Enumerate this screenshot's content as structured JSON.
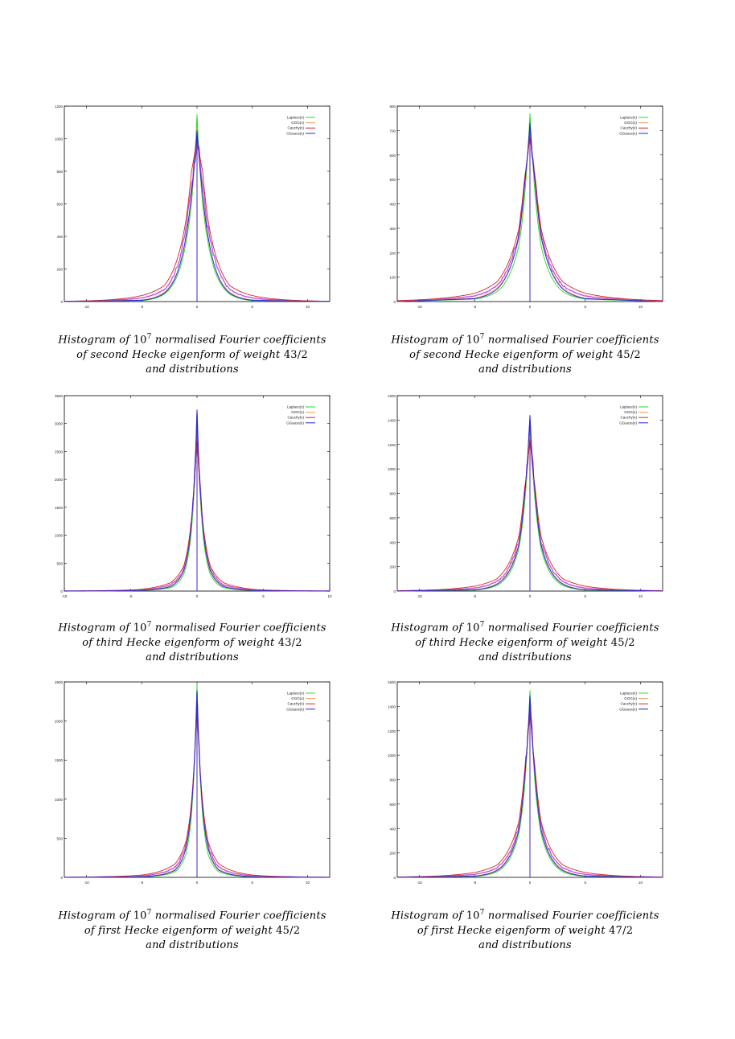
{
  "legend_labels": [
    "Laplace(x)",
    "GGG(x)",
    "Cauchy(x)",
    "GGauss(x)"
  ],
  "series_colors": {
    "Laplace(x)": "#22dd22",
    "GGG(x)": "#ff9a66",
    "Cauchy(x)": "#dd2222",
    "GGauss(x)": "#2222dd",
    "histogram": "#aa33dd"
  },
  "captions": [
    {
      "prefix": "Histogram of ",
      "base": "10",
      "exp": "7",
      "rest": " normalised Fourier coefficients",
      "line2": "of second Hecke eigenform of weight ",
      "weight": "43/2",
      "line3": "and distributions"
    },
    {
      "prefix": "Histogram of ",
      "base": "10",
      "exp": "7",
      "rest": " normalised Fourier coefficients",
      "line2": "of second Hecke eigenform of weight ",
      "weight": "45/2",
      "line3": "and distributions"
    },
    {
      "prefix": "Histogram of ",
      "base": "10",
      "exp": "7",
      "rest": " normalised Fourier coefficients",
      "line2": "of third Hecke eigenform of weight ",
      "weight": "43/2",
      "line3": "and distributions"
    },
    {
      "prefix": "Histogram of ",
      "base": "10",
      "exp": "7",
      "rest": " normalised Fourier coefficients",
      "line2": "of third Hecke eigenform of weight ",
      "weight": "45/2",
      "line3": "and distributions"
    },
    {
      "prefix": "Histogram of ",
      "base": "10",
      "exp": "7",
      "rest": " normalised Fourier coefficients",
      "line2": "of first Hecke eigenform of weight ",
      "weight": "45/2",
      "line3": "and distributions"
    },
    {
      "prefix": "Histogram of ",
      "base": "10",
      "exp": "7",
      "rest": " normalised Fourier coefficients",
      "line2": "of first Hecke eigenform of weight ",
      "weight": "47/2",
      "line3": "and distributions"
    }
  ],
  "chart_data": [
    {
      "type": "line",
      "xlim": [
        -12,
        12
      ],
      "ylim": [
        0,
        1200
      ],
      "xticks": [
        -10,
        -5,
        0,
        5,
        10
      ],
      "xtick_labels": [
        "-10",
        "-5",
        "0",
        "5",
        "10"
      ],
      "yticks": [
        0,
        200,
        400,
        600,
        800,
        1000,
        1200
      ],
      "ytick_labels": [
        "0",
        "200",
        "400",
        "600",
        "800",
        "1000",
        "1200"
      ],
      "legend": "top-right",
      "grid": false,
      "series": [
        {
          "name": "Laplace(x)",
          "color": "#22dd22",
          "x": [
            -12,
            -5,
            -3,
            -1,
            -0.5,
            0,
            0.5,
            1,
            3,
            5,
            12
          ],
          "y": [
            0,
            6,
            44,
            360,
            600,
            1150,
            600,
            360,
            44,
            6,
            0
          ]
        },
        {
          "name": "GGG(x)",
          "color": "#ff9a66",
          "x": [
            -12,
            -5,
            -3,
            -1,
            -0.5,
            0,
            0.5,
            1,
            3,
            5,
            12
          ],
          "y": [
            0,
            10,
            55,
            390,
            640,
            1070,
            640,
            390,
            55,
            10,
            0
          ]
        },
        {
          "name": "Cauchy(x)",
          "color": "#dd2222",
          "x": [
            -12,
            -5,
            -3,
            -1,
            -0.5,
            0,
            0.5,
            1,
            3,
            5,
            12
          ],
          "y": [
            2,
            37,
            96,
            500,
            800,
            1000,
            800,
            500,
            96,
            37,
            2
          ]
        },
        {
          "name": "GGauss(x)",
          "color": "#2222dd",
          "x": [
            -12,
            -5,
            -3,
            -1,
            -0.5,
            0,
            0.5,
            1,
            3,
            5,
            12
          ],
          "y": [
            0,
            8,
            50,
            400,
            660,
            1050,
            660,
            400,
            50,
            8,
            0
          ]
        }
      ]
    },
    {
      "type": "line",
      "xlim": [
        -12,
        12
      ],
      "ylim": [
        0,
        800
      ],
      "xticks": [
        -10,
        -5,
        0,
        5,
        10
      ],
      "xtick_labels": [
        "-10",
        "-5",
        "0",
        "5",
        "10"
      ],
      "yticks": [
        0,
        100,
        200,
        300,
        400,
        500,
        600,
        700,
        800
      ],
      "ytick_labels": [
        "0",
        "100",
        "200",
        "300",
        "400",
        "500",
        "600",
        "700",
        "800"
      ],
      "legend": "top-right",
      "grid": false,
      "series": [
        {
          "name": "Laplace(x)",
          "color": "#22dd22",
          "x": [
            -12,
            -5,
            -3,
            -1,
            -0.5,
            0,
            0.5,
            1,
            3,
            5,
            12
          ],
          "y": [
            0,
            10,
            40,
            230,
            420,
            770,
            420,
            230,
            40,
            10,
            0
          ]
        },
        {
          "name": "GGG(x)",
          "color": "#ff9a66",
          "x": [
            -12,
            -5,
            -3,
            -1,
            -0.5,
            0,
            0.5,
            1,
            3,
            5,
            12
          ],
          "y": [
            0,
            14,
            55,
            260,
            460,
            720,
            460,
            260,
            55,
            14,
            0
          ]
        },
        {
          "name": "Cauchy(x)",
          "color": "#dd2222",
          "x": [
            -12,
            -5,
            -3,
            -1,
            -0.5,
            0,
            0.5,
            1,
            3,
            5,
            12
          ],
          "y": [
            4,
            34,
            80,
            300,
            500,
            680,
            500,
            300,
            80,
            34,
            4
          ]
        },
        {
          "name": "GGauss(x)",
          "color": "#2222dd",
          "x": [
            -12,
            -5,
            -3,
            -1,
            -0.5,
            0,
            0.5,
            1,
            3,
            5,
            12
          ],
          "y": [
            0,
            12,
            50,
            270,
            470,
            730,
            470,
            270,
            50,
            12,
            0
          ]
        }
      ]
    },
    {
      "type": "line",
      "xlim": [
        -10,
        10
      ],
      "ylim": [
        0,
        3500
      ],
      "xticks": [
        -10,
        -5,
        0,
        5,
        10
      ],
      "xtick_labels": [
        "-10",
        "-5",
        "0",
        "5",
        "10"
      ],
      "yticks": [
        0,
        500,
        1000,
        1500,
        2000,
        2500,
        3000,
        3500
      ],
      "ytick_labels": [
        "0",
        "500",
        "1000",
        "1500",
        "2000",
        "2500",
        "3000",
        "3500"
      ],
      "legend": "top-right",
      "grid": false,
      "series": [
        {
          "name": "Laplace(x)",
          "color": "#22dd22",
          "x": [
            -10,
            -5,
            -2,
            -1,
            -0.5,
            0,
            0.5,
            1,
            2,
            5,
            10
          ],
          "y": [
            0,
            5,
            60,
            300,
            900,
            3000,
            900,
            300,
            60,
            5,
            0
          ]
        },
        {
          "name": "GGG(x)",
          "color": "#ff9a66",
          "x": [
            -10,
            -5,
            -2,
            -1,
            -0.5,
            0,
            0.5,
            1,
            2,
            5,
            10
          ],
          "y": [
            0,
            8,
            90,
            380,
            1000,
            2900,
            1000,
            380,
            90,
            8,
            0
          ]
        },
        {
          "name": "Cauchy(x)",
          "color": "#dd2222",
          "x": [
            -10,
            -5,
            -2,
            -1,
            -0.5,
            0,
            0.5,
            1,
            2,
            5,
            10
          ],
          "y": [
            2,
            20,
            150,
            450,
            1100,
            2800,
            1100,
            450,
            150,
            20,
            2
          ]
        },
        {
          "name": "GGauss(x)",
          "color": "#2222dd",
          "x": [
            -10,
            -5,
            -2,
            -1,
            -0.5,
            0,
            0.5,
            1,
            2,
            5,
            10
          ],
          "y": [
            0,
            6,
            80,
            360,
            1000,
            3250,
            1000,
            360,
            80,
            6,
            0
          ]
        }
      ]
    },
    {
      "type": "line",
      "xlim": [
        -12,
        12
      ],
      "ylim": [
        0,
        1600
      ],
      "xticks": [
        -10,
        -5,
        0,
        5,
        10
      ],
      "xtick_labels": [
        "-10",
        "-5",
        "0",
        "5",
        "10"
      ],
      "yticks": [
        0,
        200,
        400,
        600,
        800,
        1000,
        1200,
        1400,
        1600
      ],
      "ytick_labels": [
        "0",
        "200",
        "400",
        "600",
        "800",
        "1000",
        "1200",
        "1400",
        "1600"
      ],
      "legend": "top-right",
      "grid": false,
      "series": [
        {
          "name": "Laplace(x)",
          "color": "#22dd22",
          "x": [
            -12,
            -5,
            -3,
            -1,
            -0.5,
            0,
            0.5,
            1,
            3,
            5,
            12
          ],
          "y": [
            0,
            8,
            45,
            350,
            700,
            1350,
            700,
            350,
            45,
            8,
            0
          ]
        },
        {
          "name": "GGG(x)",
          "color": "#ff9a66",
          "x": [
            -12,
            -5,
            -3,
            -1,
            -0.5,
            0,
            0.5,
            1,
            3,
            5,
            12
          ],
          "y": [
            0,
            12,
            60,
            390,
            750,
            1300,
            750,
            390,
            60,
            12,
            0
          ]
        },
        {
          "name": "Cauchy(x)",
          "color": "#dd2222",
          "x": [
            -12,
            -5,
            -3,
            -1,
            -0.5,
            0,
            0.5,
            1,
            3,
            5,
            12
          ],
          "y": [
            3,
            40,
            100,
            450,
            820,
            1250,
            820,
            450,
            100,
            40,
            3
          ]
        },
        {
          "name": "GGauss(x)",
          "color": "#2222dd",
          "x": [
            -12,
            -5,
            -3,
            -1,
            -0.5,
            0,
            0.5,
            1,
            3,
            5,
            12
          ],
          "y": [
            0,
            10,
            55,
            380,
            760,
            1440,
            760,
            380,
            55,
            10,
            0
          ]
        }
      ]
    },
    {
      "type": "line",
      "xlim": [
        -12,
        12
      ],
      "ylim": [
        0,
        2500
      ],
      "xticks": [
        -10,
        -5,
        0,
        5,
        10
      ],
      "xtick_labels": [
        "-10",
        "-5",
        "0",
        "5",
        "10"
      ],
      "yticks": [
        0,
        500,
        1000,
        1500,
        2000,
        2500
      ],
      "ytick_labels": [
        "0",
        "500",
        "1000",
        "1500",
        "2000",
        "2500"
      ],
      "legend": "top-right",
      "grid": false,
      "series": [
        {
          "name": "Laplace(x)",
          "color": "#22dd22",
          "x": [
            -12,
            -5,
            -2,
            -1,
            -0.5,
            0,
            0.5,
            1,
            2,
            5,
            12
          ],
          "y": [
            0,
            6,
            70,
            300,
            800,
            2480,
            800,
            300,
            70,
            6,
            0
          ]
        },
        {
          "name": "GGG(x)",
          "color": "#ff9a66",
          "x": [
            -12,
            -5,
            -2,
            -1,
            -0.5,
            0,
            0.5,
            1,
            2,
            5,
            12
          ],
          "y": [
            0,
            10,
            100,
            380,
            880,
            2350,
            880,
            380,
            100,
            10,
            0
          ]
        },
        {
          "name": "Cauchy(x)",
          "color": "#dd2222",
          "x": [
            -12,
            -5,
            -2,
            -1,
            -0.5,
            0,
            0.5,
            1,
            2,
            5,
            12
          ],
          "y": [
            2,
            30,
            170,
            460,
            950,
            2250,
            950,
            460,
            170,
            30,
            2
          ]
        },
        {
          "name": "GGauss(x)",
          "color": "#2222dd",
          "x": [
            -12,
            -5,
            -2,
            -1,
            -0.5,
            0,
            0.5,
            1,
            2,
            5,
            12
          ],
          "y": [
            0,
            8,
            90,
            370,
            880,
            2380,
            880,
            370,
            90,
            8,
            0
          ]
        }
      ]
    },
    {
      "type": "line",
      "xlim": [
        -12,
        12
      ],
      "ylim": [
        0,
        1600
      ],
      "xticks": [
        -10,
        -5,
        0,
        5,
        10
      ],
      "xtick_labels": [
        "-10",
        "-5",
        "0",
        "5",
        "10"
      ],
      "yticks": [
        0,
        200,
        400,
        600,
        800,
        1000,
        1200,
        1400,
        1600
      ],
      "ytick_labels": [
        "0",
        "200",
        "400",
        "600",
        "800",
        "1000",
        "1200",
        "1400",
        "1600"
      ],
      "legend": "top-right",
      "grid": false,
      "series": [
        {
          "name": "Laplace(x)",
          "color": "#22dd22",
          "x": [
            -12,
            -5,
            -3,
            -1,
            -0.5,
            0,
            0.5,
            1,
            3,
            5,
            12
          ],
          "y": [
            0,
            8,
            45,
            360,
            720,
            1530,
            720,
            360,
            45,
            8,
            0
          ]
        },
        {
          "name": "GGG(x)",
          "color": "#ff9a66",
          "x": [
            -12,
            -5,
            -3,
            -1,
            -0.5,
            0,
            0.5,
            1,
            3,
            5,
            12
          ],
          "y": [
            0,
            12,
            60,
            400,
            780,
            1420,
            780,
            400,
            60,
            12,
            0
          ]
        },
        {
          "name": "Cauchy(x)",
          "color": "#dd2222",
          "x": [
            -12,
            -5,
            -3,
            -1,
            -0.5,
            0,
            0.5,
            1,
            3,
            5,
            12
          ],
          "y": [
            3,
            40,
            100,
            460,
            850,
            1380,
            850,
            460,
            100,
            40,
            3
          ]
        },
        {
          "name": "GGauss(x)",
          "color": "#2222dd",
          "x": [
            -12,
            -5,
            -3,
            -1,
            -0.5,
            0,
            0.5,
            1,
            3,
            5,
            12
          ],
          "y": [
            0,
            10,
            55,
            390,
            790,
            1490,
            790,
            390,
            55,
            10,
            0
          ]
        }
      ]
    }
  ]
}
